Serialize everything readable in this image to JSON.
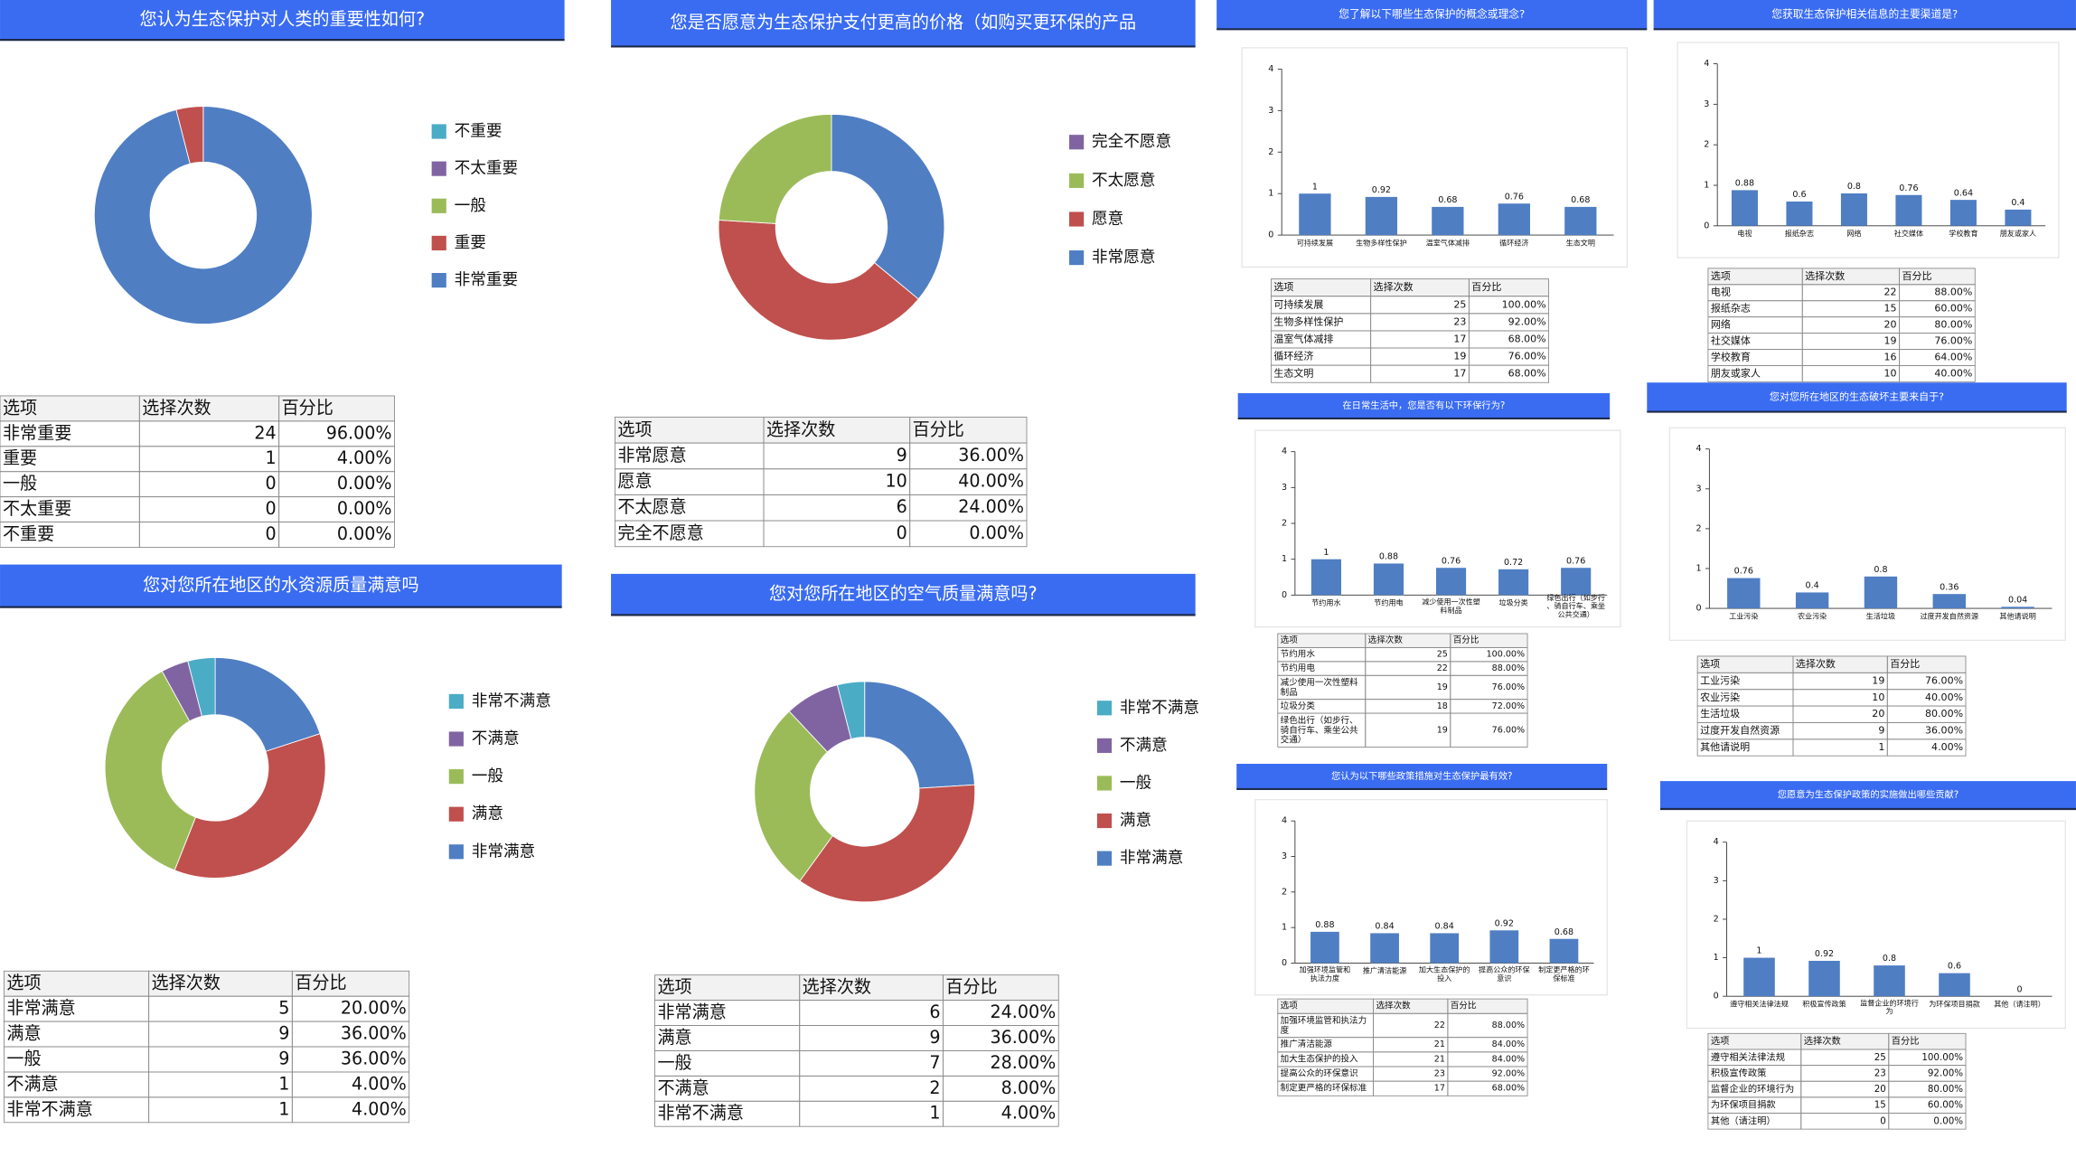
{
  "chart_data": [
    {
      "type": "donut",
      "title": "您认为生态保护对人类的重要性如何?",
      "categories": [
        "非常重要",
        "重要",
        "一般",
        "不太重要",
        "不重要"
      ],
      "values": [
        24,
        1,
        0,
        0,
        0
      ],
      "colors": [
        "#4f7ec3",
        "#c0504d",
        "#9bbb59",
        "#8064a2",
        "#4bacc6"
      ],
      "table": {
        "columns": [
          "选项",
          "选择次数",
          "百分比"
        ],
        "rows": [
          [
            "非常重要",
            "24",
            "96.00%"
          ],
          [
            "重要",
            "1",
            "4.00%"
          ],
          [
            "一般",
            "0",
            "0.00%"
          ],
          [
            "不太重要",
            "0",
            "0.00%"
          ],
          [
            "不重要",
            "0",
            "0.00%"
          ]
        ]
      }
    },
    {
      "type": "donut",
      "title": "您是否愿意为生态保护支付更高的价格（如购买更环保的产品",
      "categories": [
        "非常愿意",
        "愿意",
        "不太愿意",
        "完全不愿意"
      ],
      "values": [
        9,
        10,
        6,
        0
      ],
      "colors": [
        "#4f7ec3",
        "#c0504d",
        "#9bbb59",
        "#8064a2"
      ],
      "table": {
        "columns": [
          "选项",
          "选择次数",
          "百分比"
        ],
        "rows": [
          [
            "非常愿意",
            "9",
            "36.00%"
          ],
          [
            "愿意",
            "10",
            "40.00%"
          ],
          [
            "不太愿意",
            "6",
            "24.00%"
          ],
          [
            "完全不愿意",
            "0",
            "0.00%"
          ]
        ]
      }
    },
    {
      "type": "donut",
      "title": "您对您所在地区的水资源质量满意吗",
      "categories": [
        "非常满意",
        "满意",
        "一般",
        "不满意",
        "非常不满意"
      ],
      "values": [
        5,
        9,
        9,
        1,
        1
      ],
      "colors": [
        "#4f7ec3",
        "#c0504d",
        "#9bbb59",
        "#8064a2",
        "#4bacc6"
      ],
      "table": {
        "columns": [
          "选项",
          "选择次数",
          "百分比"
        ],
        "rows": [
          [
            "非常满意",
            "5",
            "20.00%"
          ],
          [
            "满意",
            "9",
            "36.00%"
          ],
          [
            "一般",
            "9",
            "36.00%"
          ],
          [
            "不满意",
            "1",
            "4.00%"
          ],
          [
            "非常不满意",
            "1",
            "4.00%"
          ]
        ]
      }
    },
    {
      "type": "donut",
      "title": "您对您所在地区的空气质量满意吗?",
      "categories": [
        "非常满意",
        "满意",
        "一般",
        "不满意",
        "非常不满意"
      ],
      "values": [
        6,
        9,
        7,
        2,
        1
      ],
      "colors": [
        "#4f7ec3",
        "#c0504d",
        "#9bbb59",
        "#8064a2",
        "#4bacc6"
      ],
      "table": {
        "columns": [
          "选项",
          "选择次数",
          "百分比"
        ],
        "rows": [
          [
            "非常满意",
            "6",
            "24.00%"
          ],
          [
            "满意",
            "9",
            "36.00%"
          ],
          [
            "一般",
            "7",
            "28.00%"
          ],
          [
            "不满意",
            "2",
            "8.00%"
          ],
          [
            "非常不满意",
            "1",
            "4.00%"
          ]
        ]
      }
    },
    {
      "type": "bar",
      "title": "您了解以下哪些生态保护的概念或理念?",
      "color": "#4f7ec3",
      "categories": [
        "可持续发展",
        "生物多样性保护",
        "温室气体减排",
        "循环经济",
        "生态文明"
      ],
      "values": [
        1,
        0.92,
        0.68,
        0.76,
        0.68
      ],
      "ylim": [
        0,
        4
      ],
      "yticks": [
        0,
        1,
        2,
        3,
        4
      ],
      "table": {
        "columns": [
          "选项",
          "选择次数",
          "百分比"
        ],
        "rows": [
          [
            "可持续发展",
            "25",
            "100.00%"
          ],
          [
            "生物多样性保护",
            "23",
            "92.00%"
          ],
          [
            "温室气体减排",
            "17",
            "68.00%"
          ],
          [
            "循环经济",
            "19",
            "76.00%"
          ],
          [
            "生态文明",
            "17",
            "68.00%"
          ]
        ]
      }
    },
    {
      "type": "bar",
      "title": "您获取生态保护相关信息的主要渠道是?",
      "color": "#4f7ec3",
      "categories": [
        "电视",
        "报纸杂志",
        "网络",
        "社交媒体",
        "学校教育",
        "朋友或家人"
      ],
      "values": [
        0.88,
        0.6,
        0.8,
        0.76,
        0.64,
        0.4
      ],
      "ylim": [
        0,
        4
      ],
      "yticks": [
        0,
        1,
        2,
        3,
        4
      ],
      "table": {
        "columns": [
          "选项",
          "选择次数",
          "百分比"
        ],
        "rows": [
          [
            "电视",
            "22",
            "88.00%"
          ],
          [
            "报纸杂志",
            "15",
            "60.00%"
          ],
          [
            "网络",
            "20",
            "80.00%"
          ],
          [
            "社交媒体",
            "19",
            "76.00%"
          ],
          [
            "学校教育",
            "16",
            "64.00%"
          ],
          [
            "朋友或家人",
            "10",
            "40.00%"
          ]
        ]
      }
    },
    {
      "type": "bar",
      "title": "在日常生活中，您是否有以下环保行为?",
      "color": "#4f7ec3",
      "categories": [
        "节约用水",
        "节约用电",
        "减少使用一次性塑料制品",
        "垃圾分类",
        "绿色出行（如步行、骑自行车、乘坐公共交通）"
      ],
      "values": [
        1,
        0.88,
        0.76,
        0.72,
        0.76
      ],
      "ylim": [
        0,
        4
      ],
      "yticks": [
        0,
        1,
        2,
        3,
        4
      ],
      "table": {
        "columns": [
          "选项",
          "选择次数",
          "百分比"
        ],
        "rows": [
          [
            "节约用水",
            "25",
            "100.00%"
          ],
          [
            "节约用电",
            "22",
            "88.00%"
          ],
          [
            "减少使用一次性塑料制品",
            "19",
            "76.00%"
          ],
          [
            "垃圾分类",
            "18",
            "72.00%"
          ],
          [
            "绿色出行（如步行、骑自行车、乘坐公共交通）",
            "19",
            "76.00%"
          ]
        ]
      }
    },
    {
      "type": "bar",
      "title": "您对您所在地区的生态破坏主要来自于?",
      "color": "#4f7ec3",
      "categories": [
        "工业污染",
        "农业污染",
        "生活垃圾",
        "过度开发自然资源",
        "其他请说明"
      ],
      "values": [
        0.76,
        0.4,
        0.8,
        0.36,
        0.04
      ],
      "ylim": [
        0,
        4
      ],
      "yticks": [
        0,
        1,
        2,
        3,
        4
      ],
      "table": {
        "columns": [
          "选项",
          "选择次数",
          "百分比"
        ],
        "rows": [
          [
            "工业污染",
            "19",
            "76.00%"
          ],
          [
            "农业污染",
            "10",
            "40.00%"
          ],
          [
            "生活垃圾",
            "20",
            "80.00%"
          ],
          [
            "过度开发自然资源",
            "9",
            "36.00%"
          ],
          [
            "其他请说明",
            "1",
            "4.00%"
          ]
        ]
      }
    },
    {
      "type": "bar",
      "title": "您认为以下哪些政策措施对生态保护最有效?",
      "color": "#4f7ec3",
      "categories": [
        "加强环境监管和执法力度",
        "推广清洁能源",
        "加大生态保护的投入",
        "提高公众的环保意识",
        "制定更严格的环保标准"
      ],
      "values": [
        0.88,
        0.84,
        0.84,
        0.92,
        0.68
      ],
      "ylim": [
        0,
        4
      ],
      "yticks": [
        0,
        1,
        2,
        3,
        4
      ],
      "table": {
        "columns": [
          "选项",
          "选择次数",
          "百分比"
        ],
        "rows": [
          [
            "加强环境监管和执法力度",
            "22",
            "88.00%"
          ],
          [
            "推广清洁能源",
            "21",
            "84.00%"
          ],
          [
            "加大生态保护的投入",
            "21",
            "84.00%"
          ],
          [
            "提高公众的环保意识",
            "23",
            "92.00%"
          ],
          [
            "制定更严格的环保标准",
            "17",
            "68.00%"
          ]
        ]
      }
    },
    {
      "type": "bar",
      "title": "您愿意为生态保护政策的实施做出哪些贡献?",
      "color": "#4f7ec3",
      "categories": [
        "遵守相关法律法规",
        "积极宣传政策",
        "监督企业的环境行为",
        "为环保项目捐款",
        "其他（请注明）"
      ],
      "values": [
        1,
        0.92,
        0.8,
        0.6,
        0
      ],
      "ylim": [
        0,
        4
      ],
      "yticks": [
        0,
        1,
        2,
        3,
        4
      ],
      "table": {
        "columns": [
          "选项",
          "选择次数",
          "百分比"
        ],
        "rows": [
          [
            "遵守相关法律法规",
            "25",
            "100.00%"
          ],
          [
            "积极宣传政策",
            "23",
            "92.00%"
          ],
          [
            "监督企业的环境行为",
            "20",
            "80.00%"
          ],
          [
            "为环保项目捐款",
            "15",
            "60.00%"
          ],
          [
            "其他（请注明）",
            "0",
            "0.00%"
          ]
        ]
      }
    }
  ]
}
